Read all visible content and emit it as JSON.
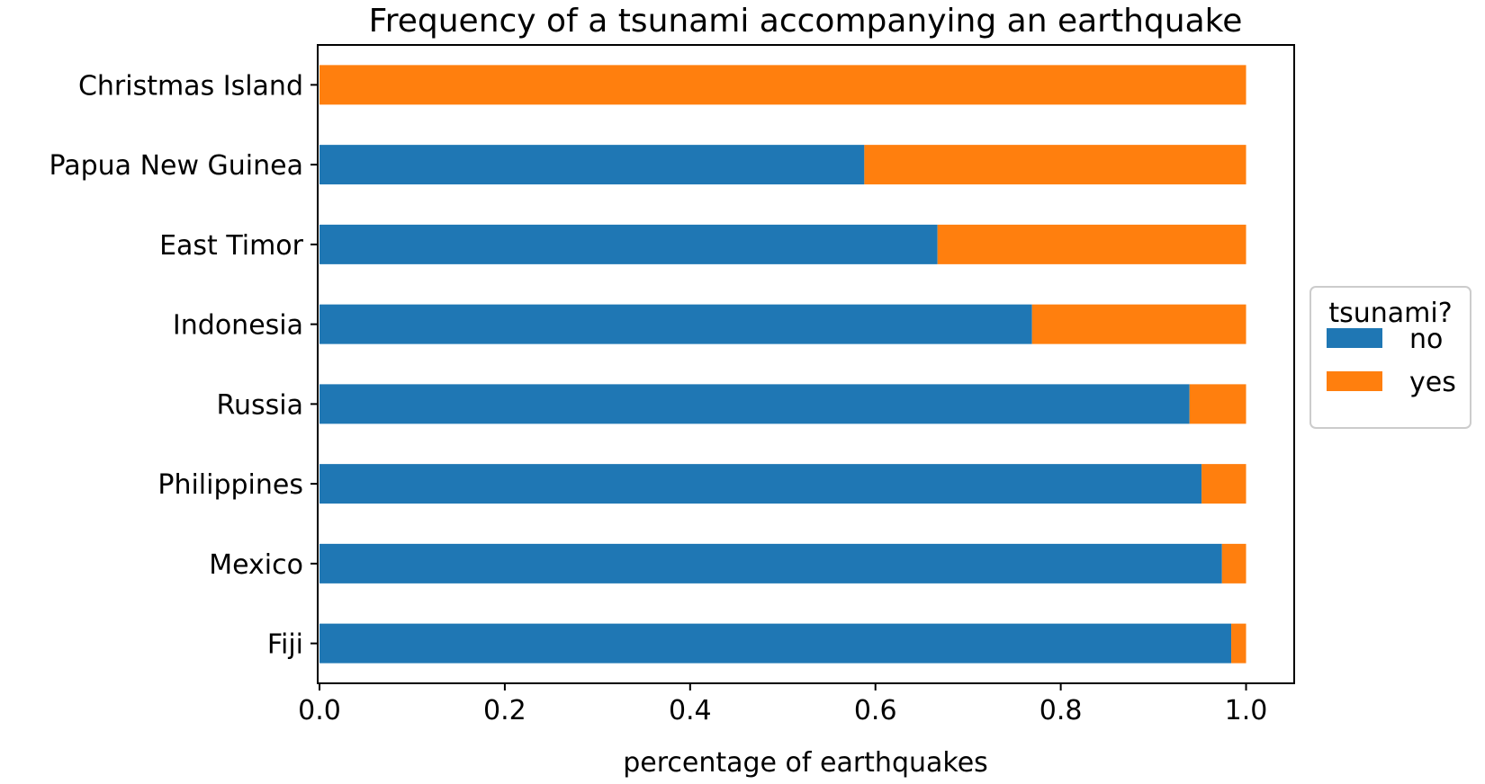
{
  "chart_data": {
    "type": "bar",
    "orientation": "horizontal",
    "stacked": true,
    "title": "Frequency of a tsunami accompanying an earthquake",
    "xlabel": "percentage of earthquakes",
    "ylabel": "",
    "xlim": [
      0,
      1.05
    ],
    "xticks": [
      0.0,
      0.2,
      0.4,
      0.6,
      0.8,
      1.0
    ],
    "xtick_labels": [
      "0.0",
      "0.2",
      "0.4",
      "0.6",
      "0.8",
      "1.0"
    ],
    "grid": false,
    "categories": [
      "Christmas Island",
      "Papua New Guinea",
      "East Timor",
      "Indonesia",
      "Russia",
      "Philippines",
      "Mexico",
      "Fiji"
    ],
    "series": [
      {
        "name": "no",
        "color": "#1f77b4",
        "values": [
          0.0,
          0.588,
          0.667,
          0.769,
          0.939,
          0.952,
          0.974,
          0.984
        ]
      },
      {
        "name": "yes",
        "color": "#ff7f0e",
        "values": [
          1.0,
          0.412,
          0.333,
          0.231,
          0.061,
          0.048,
          0.026,
          0.016
        ]
      }
    ],
    "legend": {
      "title": "tsunami?",
      "placement": "center-right outside"
    }
  }
}
